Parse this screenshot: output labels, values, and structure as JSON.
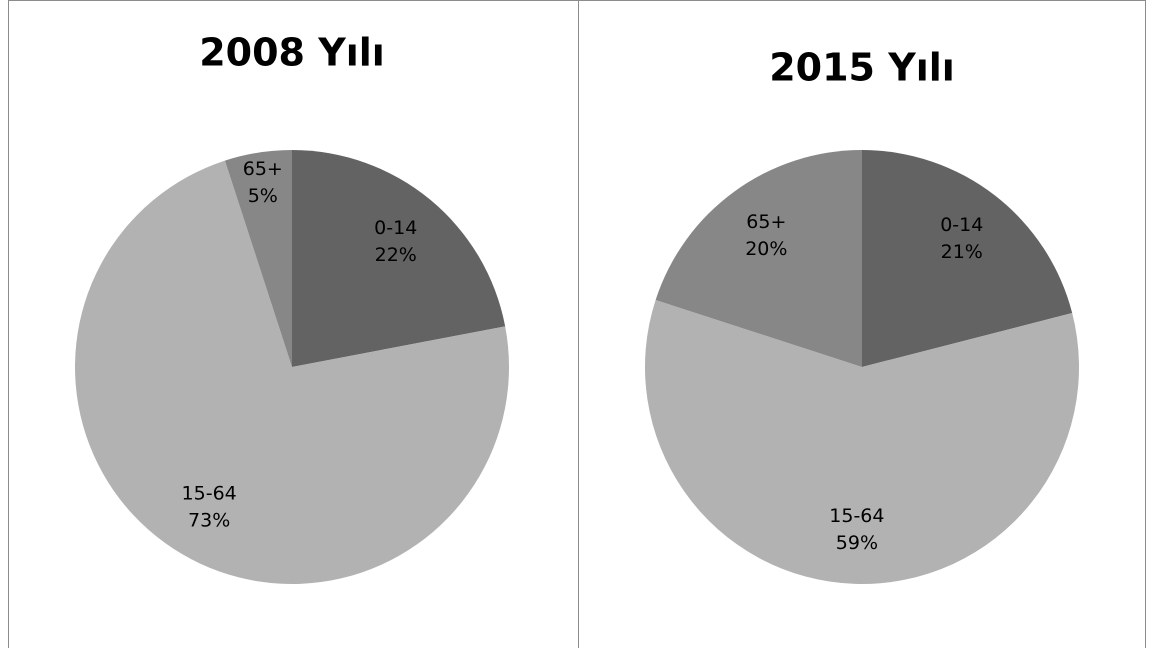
{
  "chart_data": [
    {
      "type": "pie",
      "title": "2008 Yılı",
      "categories": [
        "0-14",
        "15-64",
        "65+"
      ],
      "values": [
        22,
        73,
        5
      ],
      "value_labels": [
        "22%",
        "73%",
        "5%"
      ],
      "colors": [
        "#636363",
        "#b2b2b2",
        "#878787"
      ]
    },
    {
      "type": "pie",
      "title": "2015 Yılı",
      "categories": [
        "0-14",
        "15-64",
        "65+"
      ],
      "values": [
        21,
        59,
        20
      ],
      "value_labels": [
        "21%",
        "59%",
        "20%"
      ],
      "colors": [
        "#636363",
        "#b2b2b2",
        "#878787"
      ]
    }
  ]
}
